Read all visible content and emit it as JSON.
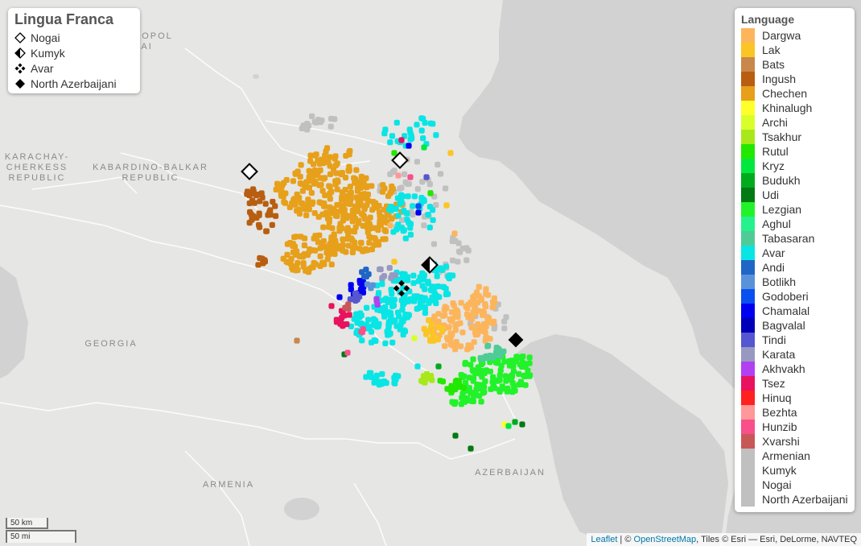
{
  "map": {
    "region_labels": [
      {
        "id": "stavropol",
        "text": "STAVROPOL\nKRAI"
      },
      {
        "id": "karachay",
        "text": "KARACHAY-\nCHERKESS\nREPUBLIC"
      },
      {
        "id": "kabardino",
        "text": "KABARDINO-BALKAR\nREPUBLIC"
      },
      {
        "id": "georgia",
        "text": "GEORGIA"
      },
      {
        "id": "armenia",
        "text": "ARMENIA"
      },
      {
        "id": "azerbaijan",
        "text": "AZERBAIJAN"
      }
    ]
  },
  "lingua_franca": {
    "title": "Lingua Franca",
    "items": [
      {
        "label": "Nogai",
        "symbol": "open-diamond",
        "icon": "diamond-outline-icon"
      },
      {
        "label": "Kumyk",
        "symbol": "half-diamond",
        "icon": "half-filled-diamond-icon"
      },
      {
        "label": "Avar",
        "symbol": "four-diamonds",
        "icon": "four-diamonds-icon"
      },
      {
        "label": "North Azerbaijani",
        "symbol": "filled-diamond",
        "icon": "filled-diamond-icon"
      }
    ]
  },
  "language_legend": {
    "title": "Language",
    "items": [
      {
        "label": "Dargwa",
        "color": "#FDB55C"
      },
      {
        "label": "Lak",
        "color": "#FBC525"
      },
      {
        "label": "Bats",
        "color": "#C8874B"
      },
      {
        "label": "Ingush",
        "color": "#B85E10"
      },
      {
        "label": "Chechen",
        "color": "#E7A01A"
      },
      {
        "label": "Khinalugh",
        "color": "#FFFF2B"
      },
      {
        "label": "Archi",
        "color": "#D9FF2B"
      },
      {
        "label": "Tsakhur",
        "color": "#A8E81A"
      },
      {
        "label": "Rutul",
        "color": "#22E800"
      },
      {
        "label": "Kryz",
        "color": "#00E840"
      },
      {
        "label": "Budukh",
        "color": "#00AA1E"
      },
      {
        "label": "Udi",
        "color": "#007A12"
      },
      {
        "label": "Lezgian",
        "color": "#22F22A"
      },
      {
        "label": "Aghul",
        "color": "#25F28C"
      },
      {
        "label": "Tabasaran",
        "color": "#4FCB98"
      },
      {
        "label": "Avar",
        "color": "#09E5E5"
      },
      {
        "label": "Andi",
        "color": "#1F66C6"
      },
      {
        "label": "Botlikh",
        "color": "#5A92DA"
      },
      {
        "label": "Godoberi",
        "color": "#0A50F0"
      },
      {
        "label": "Chamalal",
        "color": "#0000F0"
      },
      {
        "label": "Bagvalal",
        "color": "#0000B8"
      },
      {
        "label": "Tindi",
        "color": "#5656D0"
      },
      {
        "label": "Karata",
        "color": "#9898C0"
      },
      {
        "label": "Akhvakh",
        "color": "#B040F0"
      },
      {
        "label": "Tsez",
        "color": "#E8125E"
      },
      {
        "label": "Hinuq",
        "color": "#FF2020"
      },
      {
        "label": "Bezhta",
        "color": "#FF9898"
      },
      {
        "label": "Hunzib",
        "color": "#F8508A"
      },
      {
        "label": "Xvarshi",
        "color": "#C85858"
      },
      {
        "label": "Armenian",
        "color": "#C0C0C0"
      },
      {
        "label": "Kumyk",
        "color": "#C0C0C0"
      },
      {
        "label": "Nogai",
        "color": "#C0C0C0"
      },
      {
        "label": "North Azerbaijani",
        "color": "#C0C0C0"
      }
    ]
  },
  "scale": {
    "km": "50 km",
    "mi": "50 mi"
  },
  "attribution": {
    "leaflet": "Leaflet",
    "sep1": " | © ",
    "osm": "OpenStreetMap",
    "rest": ", Tiles © Esri — Esri, DeLorme, NAVTEQ"
  }
}
